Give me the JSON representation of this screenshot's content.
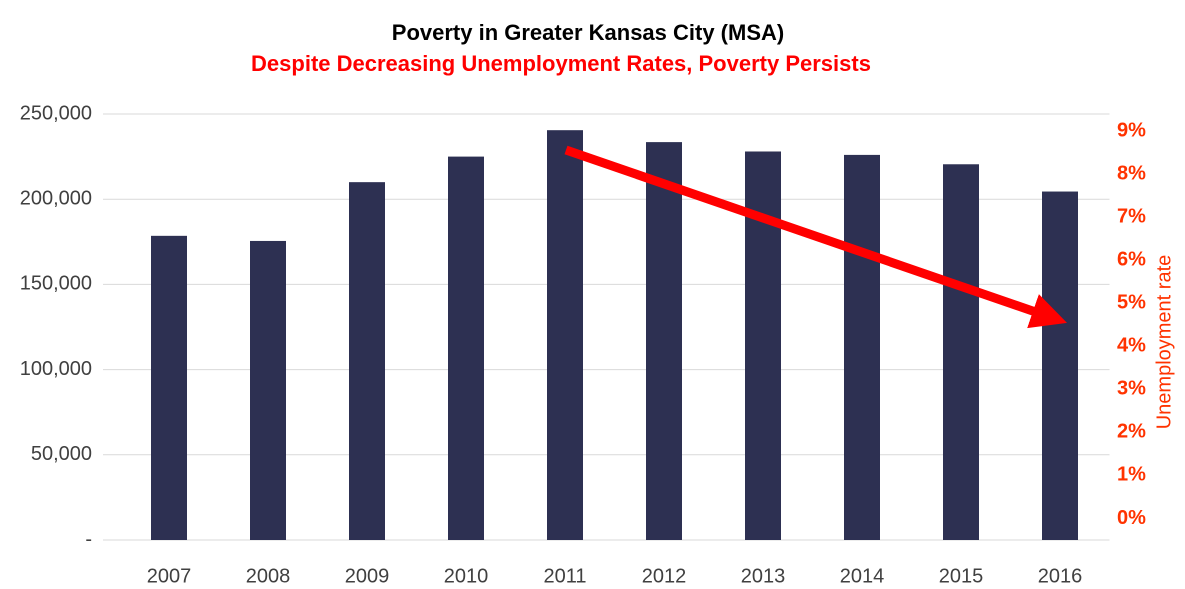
{
  "chart_data": {
    "type": "bar",
    "title": "Poverty in Greater Kansas City (MSA)",
    "subtitle": "Despite Decreasing Unemployment Rates, Poverty Persists",
    "categories": [
      "2007",
      "2008",
      "2009",
      "2010",
      "2011",
      "2012",
      "2013",
      "2014",
      "2015",
      "2016"
    ],
    "values": [
      178500,
      175500,
      210000,
      225000,
      240500,
      233500,
      228000,
      226000,
      220500,
      204500
    ],
    "color": "#2d3052",
    "ylim": [
      0,
      250000
    ],
    "yticks": [
      {
        "value": 0,
        "label": "-"
      },
      {
        "value": 50000,
        "label": "50,000"
      },
      {
        "value": 100000,
        "label": "100,000"
      },
      {
        "value": 150000,
        "label": "150,000"
      },
      {
        "value": 200000,
        "label": "200,000"
      },
      {
        "value": 250000,
        "label": "250,000"
      }
    ],
    "grid": true,
    "y2label": "Unemployment rate",
    "y2color": "#ff3300",
    "y2lim": [
      -0.5,
      9.4
    ],
    "y2ticks": [
      {
        "value": 0,
        "label": "0%"
      },
      {
        "value": 1,
        "label": "1%"
      },
      {
        "value": 2,
        "label": "2%"
      },
      {
        "value": 3,
        "label": "3%"
      },
      {
        "value": 4,
        "label": "4%"
      },
      {
        "value": 5,
        "label": "5%"
      },
      {
        "value": 6,
        "label": "6%"
      },
      {
        "value": 7,
        "label": "7%"
      },
      {
        "value": 8,
        "label": "8%"
      },
      {
        "value": 9,
        "label": "9%"
      }
    ]
  }
}
